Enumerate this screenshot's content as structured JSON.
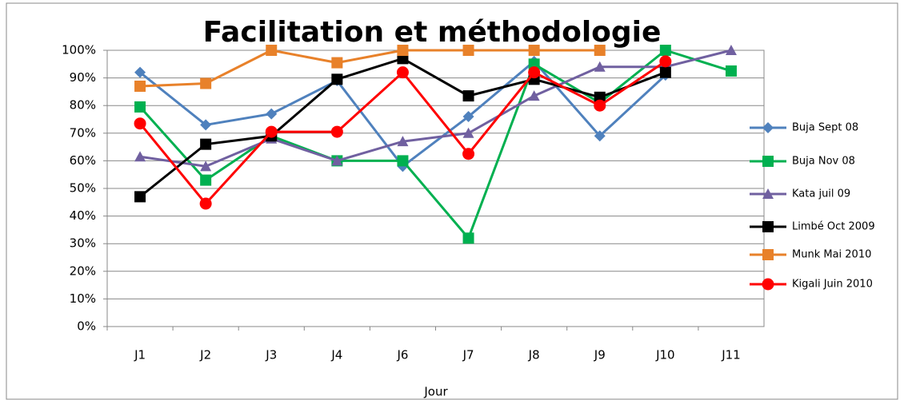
{
  "chart_data": {
    "type": "line",
    "title": "Facilitation et méthodologie",
    "x_label": "Jour",
    "categories": [
      "J1",
      "J2",
      "J3",
      "J4",
      "J6",
      "J7",
      "J8",
      "J9",
      "J10",
      "J11"
    ],
    "series": [
      {
        "name": "Buja Sept 08",
        "color": "#4f81bd",
        "marker": "diamond",
        "values": [
          92,
          73,
          77,
          89,
          58,
          76,
          96,
          69,
          91,
          null
        ]
      },
      {
        "name": "Buja Nov 08",
        "color": "#00b050",
        "marker": "square",
        "values": [
          79.5,
          53,
          69,
          60,
          60,
          32,
          95,
          81,
          100,
          92.5
        ]
      },
      {
        "name": "Kata juil 09",
        "color": "#7060a0",
        "marker": "triangle",
        "values": [
          61.5,
          58,
          68,
          60,
          67,
          70,
          83.5,
          94,
          94,
          100
        ]
      },
      {
        "name": "Limbé Oct 2009",
        "color": "#000000",
        "marker": "square",
        "values": [
          47,
          66,
          69,
          89.5,
          97,
          83.5,
          89.5,
          83,
          92,
          null
        ]
      },
      {
        "name": "Munk Mai 2010",
        "color": "#e8812a",
        "marker": "square",
        "values": [
          87,
          88,
          100,
          95.5,
          100,
          100,
          100,
          100,
          null,
          null
        ]
      },
      {
        "name": "Kigali Juin 2010",
        "color": "#ff0000",
        "marker": "circle",
        "values": [
          73.5,
          44.5,
          70.5,
          70.5,
          92,
          62.5,
          92,
          80,
          96,
          null
        ]
      }
    ],
    "ylim": [
      0,
      100
    ],
    "yticks": [
      {
        "value": 0,
        "label": "0%"
      },
      {
        "value": 10,
        "label": "10%"
      },
      {
        "value": 20,
        "label": "20%"
      },
      {
        "value": 30,
        "label": "30%"
      },
      {
        "value": 40,
        "label": "40%"
      },
      {
        "value": 50,
        "label": "50%"
      },
      {
        "value": 60,
        "label": "60%"
      },
      {
        "value": 70,
        "label": "70%"
      },
      {
        "value": 80,
        "label": "80%"
      },
      {
        "value": 90,
        "label": "90%"
      },
      {
        "value": 100,
        "label": "100%"
      }
    ],
    "grid": true,
    "legend": "right"
  }
}
